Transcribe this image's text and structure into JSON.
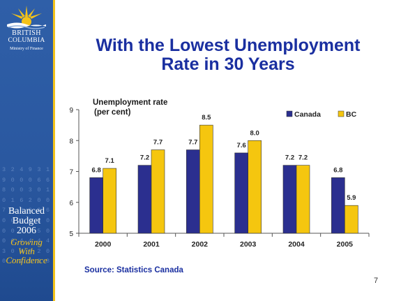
{
  "sidebar": {
    "org_line1": "BRITISH",
    "org_line2": "COLUMBIA",
    "org_line3": "Ministry of Finance",
    "badge_line1": "Balanced",
    "badge_line2": "Budget",
    "badge_line3": "2006",
    "badge_line4": "Growing",
    "badge_line5": "With",
    "badge_line6": "Confidence",
    "colors": {
      "background": "#2f5fa8",
      "rule": "#f3c21a",
      "sun": "#f3c21a"
    }
  },
  "slide": {
    "title_line1": "With the Lowest Unemployment",
    "title_line2": "Rate in 30 Years",
    "source": "Source:  Statistics Canada",
    "page_number": "7"
  },
  "chart_data": {
    "type": "bar",
    "ylabel_line1": "Unemployment rate",
    "ylabel_line2": "(per cent)",
    "categories": [
      "2000",
      "2001",
      "2002",
      "2003",
      "2004",
      "2005"
    ],
    "series": [
      {
        "name": "Canada",
        "color": "#2b2f8f",
        "values": [
          6.8,
          7.2,
          7.7,
          7.6,
          7.2,
          6.8
        ],
        "labels": [
          "6.8",
          "7.2",
          "7.7",
          "7.6",
          "7.2",
          "6.8"
        ]
      },
      {
        "name": "BC",
        "color": "#f5c60f",
        "values": [
          7.1,
          7.7,
          8.5,
          8.0,
          7.2,
          5.9
        ],
        "labels": [
          "7.1",
          "7.7",
          "8.5",
          "8.0",
          "7.2",
          "5.9"
        ]
      }
    ],
    "ylim": [
      5,
      9
    ],
    "yticks": [
      "5",
      "6",
      "7",
      "8",
      "9"
    ],
    "grid": false,
    "legend": "top-right"
  }
}
